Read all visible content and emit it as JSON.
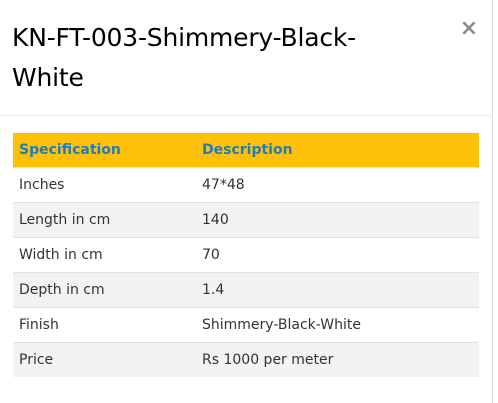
{
  "modal": {
    "title": "KN-FT-003-Shimmery-Black-White",
    "close_symbol": "×"
  },
  "table": {
    "headers": [
      "Specification",
      "Description"
    ],
    "rows": [
      [
        "Inches",
        "47*48"
      ],
      [
        "Length in cm",
        "140"
      ],
      [
        "Width in cm",
        "70"
      ],
      [
        "Depth in cm",
        "1.4"
      ],
      [
        "Finish",
        "Shimmery-Black-White"
      ],
      [
        "Price",
        "Rs 1000 per meter"
      ]
    ]
  },
  "colors": {
    "header_bg": "#ffc107",
    "header_text": "#1a7fc1",
    "stripe": "#f2f2f2"
  }
}
